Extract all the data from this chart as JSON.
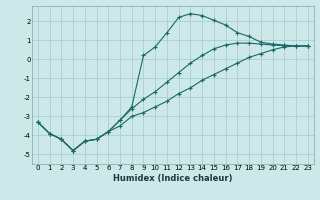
{
  "xlabel": "Humidex (Indice chaleur)",
  "ylabel": "",
  "background_color": "#cce8e8",
  "grid_color": "#aacece",
  "line_color": "#1a6868",
  "x_values": [
    0,
    1,
    2,
    3,
    4,
    5,
    6,
    7,
    8,
    9,
    10,
    11,
    12,
    13,
    14,
    15,
    16,
    17,
    18,
    19,
    20,
    21,
    22,
    23
  ],
  "line1": [
    -3.3,
    -3.9,
    -4.2,
    -4.8,
    -4.3,
    -4.2,
    -3.8,
    -3.5,
    -3.0,
    -2.8,
    -2.5,
    -2.2,
    -1.8,
    -1.5,
    -1.1,
    -0.8,
    -0.5,
    -0.2,
    0.1,
    0.3,
    0.5,
    0.65,
    0.7,
    0.7
  ],
  "line2": [
    -3.3,
    -3.9,
    -4.2,
    -4.8,
    -4.3,
    -4.2,
    -3.8,
    -3.2,
    -2.6,
    -2.1,
    -1.7,
    -1.2,
    -0.7,
    -0.2,
    0.2,
    0.55,
    0.75,
    0.85,
    0.85,
    0.8,
    0.75,
    0.72,
    0.7,
    0.7
  ],
  "line3": [
    -3.3,
    -3.9,
    -4.2,
    -4.8,
    -4.3,
    -4.2,
    -3.8,
    -3.2,
    -2.5,
    0.2,
    0.65,
    1.4,
    2.2,
    2.4,
    2.3,
    2.05,
    1.8,
    1.4,
    1.2,
    0.9,
    0.8,
    0.75,
    0.7,
    0.7
  ],
  "ylim": [
    -5.5,
    2.8
  ],
  "xlim": [
    -0.5,
    23.5
  ],
  "yticks": [
    -5,
    -4,
    -3,
    -2,
    -1,
    0,
    1,
    2
  ],
  "xticks": [
    0,
    1,
    2,
    3,
    4,
    5,
    6,
    7,
    8,
    9,
    10,
    11,
    12,
    13,
    14,
    15,
    16,
    17,
    18,
    19,
    20,
    21,
    22,
    23
  ],
  "tick_fontsize": 5.0,
  "xlabel_fontsize": 6.0,
  "marker_size": 3.0,
  "linewidth": 0.8
}
